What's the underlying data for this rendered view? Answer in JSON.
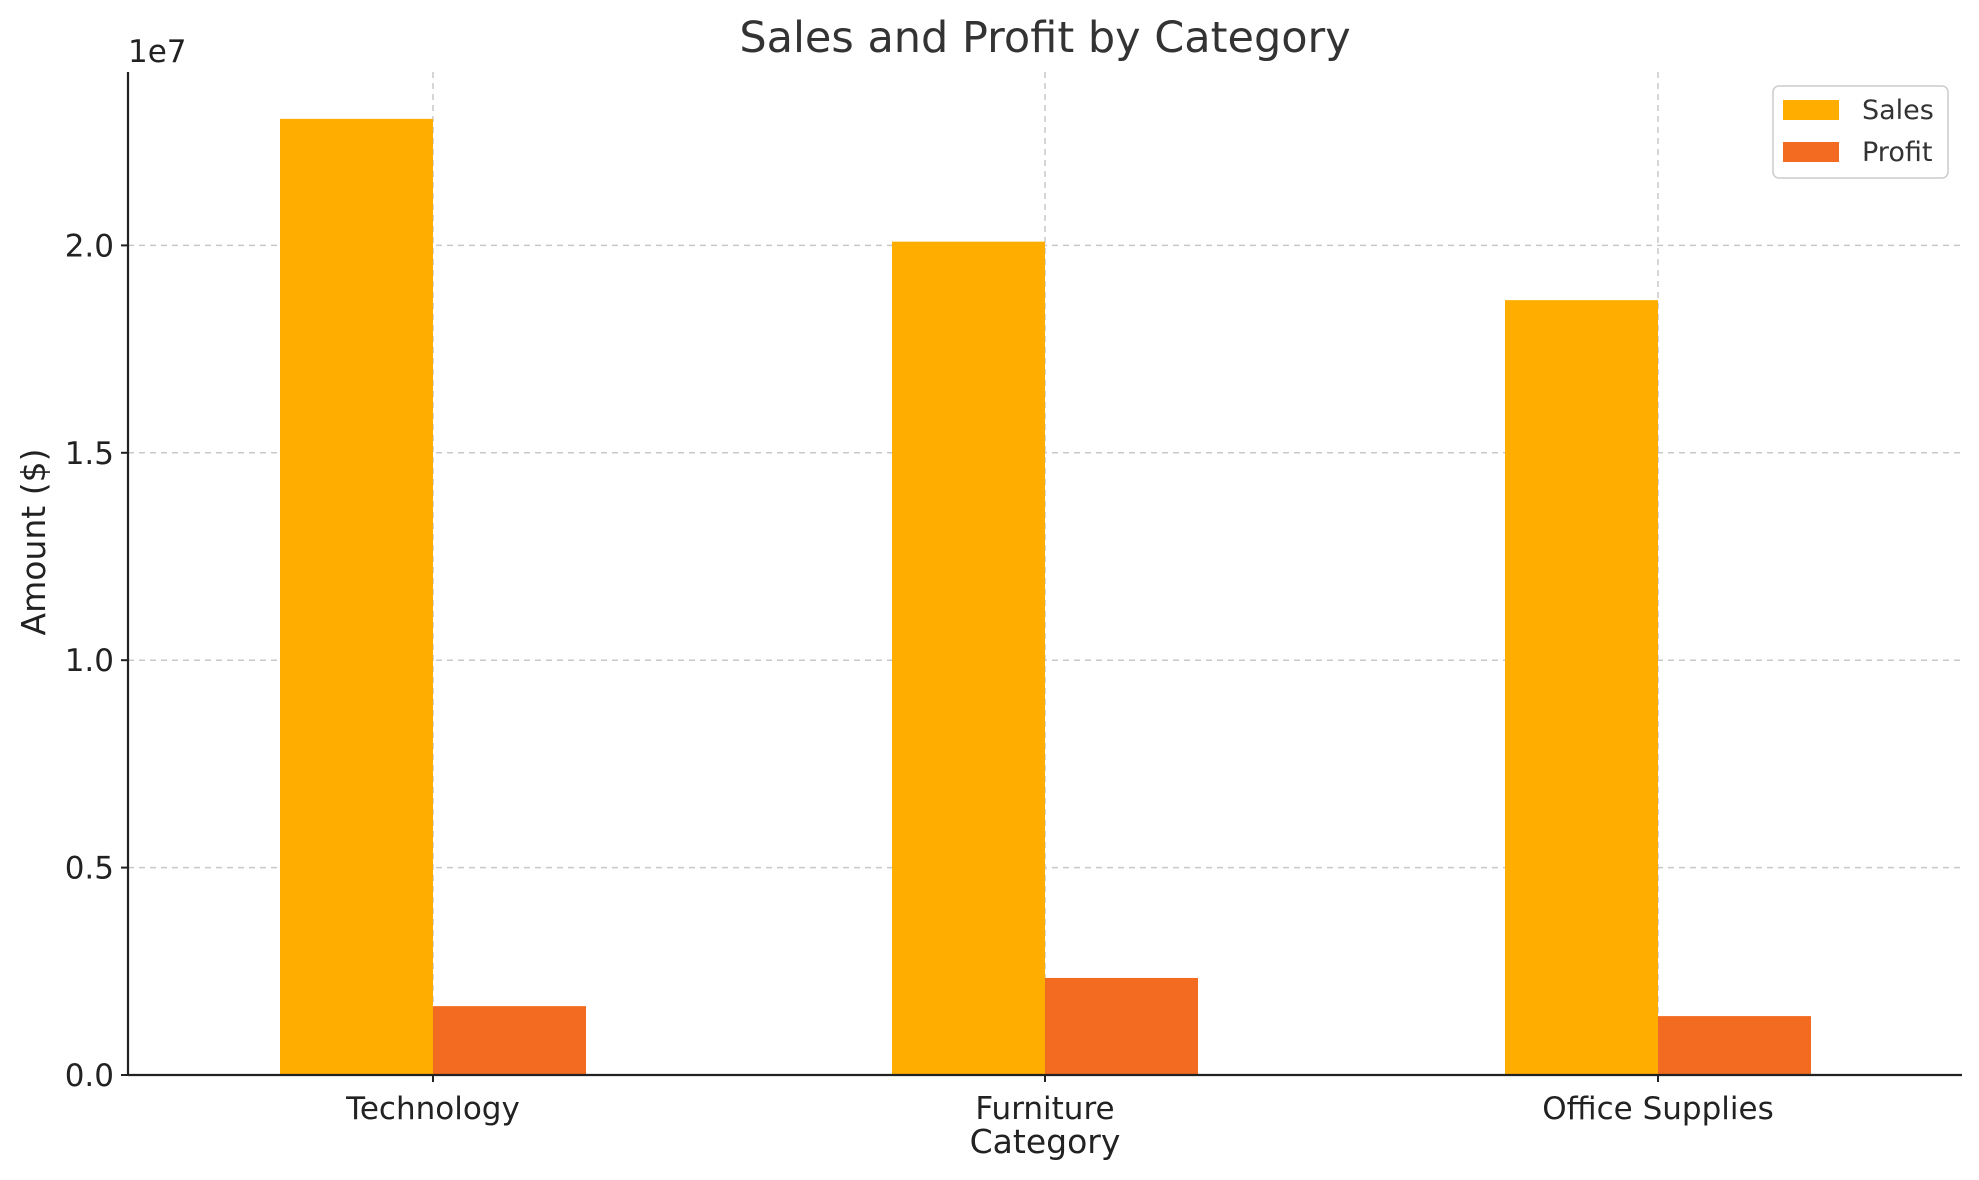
{
  "chart_data": {
    "type": "bar",
    "title": "Sales and Profit by Category",
    "xlabel": "Category",
    "ylabel": "Amount ($)",
    "y_offset_label": "1e7",
    "y_scale": 10000000,
    "categories": [
      "Technology",
      "Furniture",
      "Office Supplies"
    ],
    "series": [
      {
        "name": "Sales",
        "color": "#ffae00",
        "values": [
          23050000,
          20090000,
          18680000
        ]
      },
      {
        "name": "Profit",
        "color": "#f26b21",
        "values": [
          1660000,
          2340000,
          1420000
        ]
      }
    ],
    "ylim": [
      0,
      24180000
    ],
    "yticks": [
      0,
      5000000,
      10000000,
      15000000,
      20000000
    ],
    "ytick_labels": [
      "0.0",
      "0.5",
      "1.0",
      "1.5",
      "2.0"
    ],
    "grid": true,
    "legend": "top-right"
  }
}
